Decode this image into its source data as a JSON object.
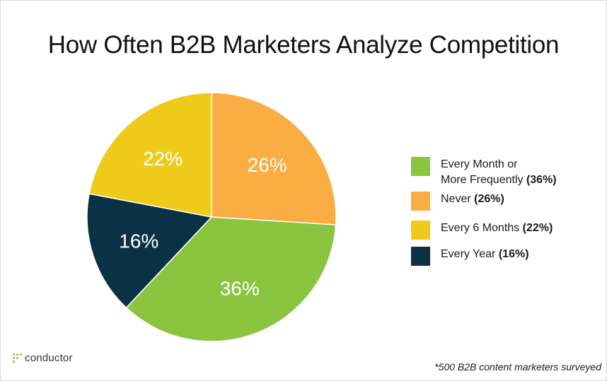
{
  "chart_data": {
    "type": "pie",
    "title": "How Often B2B Marketers Analyze Competition",
    "slices": [
      {
        "legend_label": "Every Month or More Frequently",
        "legend_label_lines": [
          "Every Month or",
          "More Frequently"
        ],
        "value": 36,
        "label": "36%",
        "legend_pct": "(36%)",
        "color": "#8bc43f"
      },
      {
        "legend_label": "Never",
        "legend_label_lines": [
          "Never"
        ],
        "value": 26,
        "label": "26%",
        "legend_pct": "(26%)",
        "color": "#f9ad43"
      },
      {
        "legend_label": "Every 6 Months",
        "legend_label_lines": [
          "Every 6 Months"
        ],
        "value": 22,
        "label": "22%",
        "legend_pct": "(22%)",
        "color": "#eecb1a"
      },
      {
        "legend_label": "Every Year",
        "legend_label_lines": [
          "Every Year"
        ],
        "value": 16,
        "label": "16%",
        "legend_pct": "(16%)",
        "color": "#0b3145"
      }
    ],
    "draw_order": [
      "Never",
      "Every Month or More Frequently",
      "Every Year",
      "Every 6 Months"
    ],
    "legend_position": "right"
  },
  "footnote": "*500 B2B content marketers surveyed",
  "logo": {
    "text": "conductor"
  }
}
